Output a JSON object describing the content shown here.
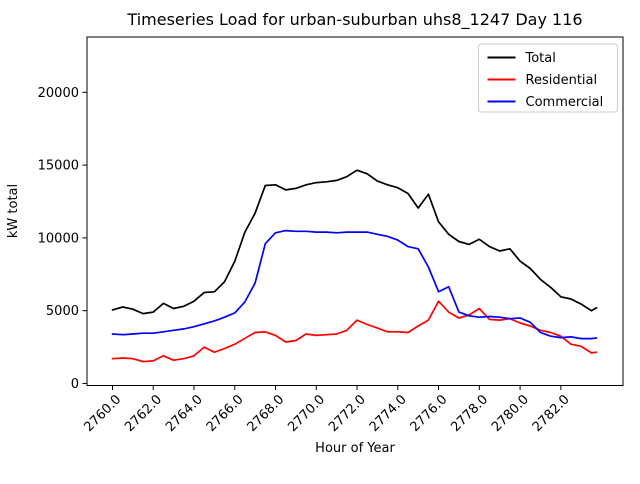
{
  "chart_data": {
    "type": "line",
    "title": "Timeseries Load for urban-suburban uhs8_1247  Day 116",
    "xlabel": "Hour of Year",
    "ylabel": "kW total",
    "grid": false,
    "xlim": [
      2758.75,
      2785.05
    ],
    "ylim": [
      -140,
      23800
    ],
    "xticks": [
      2760,
      2762,
      2764,
      2766,
      2768,
      2770,
      2772,
      2774,
      2776,
      2778,
      2780,
      2782
    ],
    "xtick_labels": [
      "2760.0",
      "2762.0",
      "2764.0",
      "2766.0",
      "2768.0",
      "2770.0",
      "2772.0",
      "2774.0",
      "2776.0",
      "2778.0",
      "2780.0",
      "2782.0"
    ],
    "yticks": [
      0,
      5000,
      10000,
      15000,
      20000
    ],
    "ytick_labels": [
      "0",
      "5000",
      "10000",
      "15000",
      "20000"
    ],
    "legend": {
      "position": "upper right",
      "entries": [
        {
          "label": "Total",
          "color": "#000000"
        },
        {
          "label": "Residential",
          "color": "#ff0000"
        },
        {
          "label": "Commercial",
          "color": "#0000ff"
        }
      ]
    },
    "x": [
      2760.0,
      2760.5,
      2761.0,
      2761.5,
      2762.0,
      2762.5,
      2763.0,
      2763.5,
      2764.0,
      2764.5,
      2765.0,
      2765.5,
      2766.0,
      2766.5,
      2767.0,
      2767.5,
      2768.0,
      2768.5,
      2769.0,
      2769.5,
      2770.0,
      2770.5,
      2771.0,
      2771.5,
      2772.0,
      2772.5,
      2773.0,
      2773.5,
      2774.0,
      2774.5,
      2775.0,
      2775.5,
      2776.0,
      2776.5,
      2777.0,
      2777.5,
      2778.0,
      2778.5,
      2779.0,
      2779.5,
      2780.0,
      2780.5,
      2781.0,
      2781.5,
      2782.0,
      2782.5,
      2783.0,
      2783.5,
      2783.75
    ],
    "series": [
      {
        "name": "Total",
        "color": "#000000",
        "values": [
          5050,
          5250,
          5100,
          4800,
          4900,
          5500,
          5150,
          5300,
          5650,
          6250,
          6300,
          7000,
          8400,
          10400,
          11700,
          13600,
          13650,
          13300,
          13400,
          13650,
          13800,
          13850,
          13950,
          14200,
          14650,
          14400,
          13900,
          13650,
          13450,
          13050,
          12050,
          13000,
          11100,
          10250,
          9750,
          9550,
          9900,
          9400,
          9100,
          9250,
          8400,
          7900,
          7150,
          6600,
          5950,
          5800,
          5450,
          5000,
          5200
        ]
      },
      {
        "name": "Residential",
        "color": "#ff0000",
        "values": [
          1700,
          1750,
          1700,
          1500,
          1550,
          1900,
          1600,
          1700,
          1900,
          2500,
          2150,
          2400,
          2700,
          3100,
          3500,
          3550,
          3300,
          2850,
          2950,
          3400,
          3300,
          3350,
          3400,
          3650,
          4350,
          4050,
          3800,
          3550,
          3550,
          3500,
          3950,
          4350,
          5650,
          4900,
          4500,
          4700,
          5150,
          4400,
          4350,
          4450,
          4150,
          3950,
          3650,
          3500,
          3250,
          2700,
          2550,
          2100,
          2150
        ]
      },
      {
        "name": "Commercial",
        "color": "#0000ff",
        "values": [
          3400,
          3350,
          3400,
          3450,
          3450,
          3550,
          3650,
          3750,
          3900,
          4100,
          4300,
          4550,
          4850,
          5600,
          6900,
          9600,
          10350,
          10500,
          10450,
          10450,
          10400,
          10400,
          10350,
          10400,
          10400,
          10400,
          10250,
          10100,
          9850,
          9400,
          9250,
          8000,
          6300,
          6650,
          4900,
          4650,
          4550,
          4600,
          4550,
          4450,
          4500,
          4200,
          3500,
          3250,
          3150,
          3200,
          3080,
          3080,
          3120
        ]
      }
    ]
  }
}
